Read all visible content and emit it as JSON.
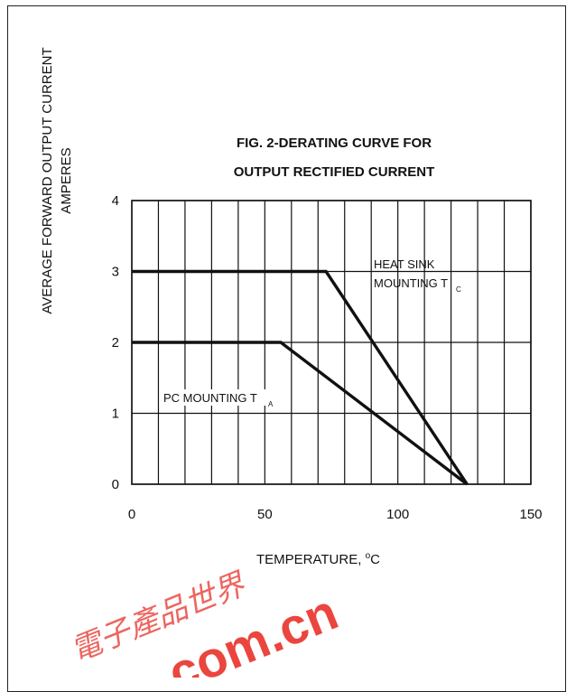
{
  "chart_data": {
    "type": "line",
    "title_line1": "FIG. 2-DERATING CURVE FOR",
    "title_line2": "OUTPUT RECTIFIED CURRENT",
    "ylabel_line1": "AVERAGE FORWARD OUTPUT CURRENT",
    "ylabel_line2": "AMPERES",
    "xlabel_prefix": "TEMPERATURE, ",
    "xlabel_degree": "o",
    "xlabel_unit": "C",
    "xlim": [
      0,
      150
    ],
    "ylim": [
      0,
      4
    ],
    "x_ticks": [
      0,
      50,
      100,
      150
    ],
    "y_ticks": [
      0,
      1,
      2,
      3,
      4
    ],
    "x_grid_step": 10,
    "grid": true,
    "series": [
      {
        "name": "HEAT SINK MOUNTING T",
        "name_line1": "HEAT SINK",
        "name_line2": "MOUNTING T",
        "subscript": "C",
        "x": [
          0,
          73,
          126
        ],
        "y": [
          3,
          3,
          0
        ]
      },
      {
        "name": "PC MOUNTING T",
        "name_line1": "PC MOUNTING T",
        "subscript": "A",
        "x": [
          0,
          56,
          126
        ],
        "y": [
          2,
          2,
          0
        ]
      }
    ]
  },
  "watermark": {
    "chinese": "電子產品世界",
    "latin": "com.cn",
    "color": "#e8322a"
  }
}
